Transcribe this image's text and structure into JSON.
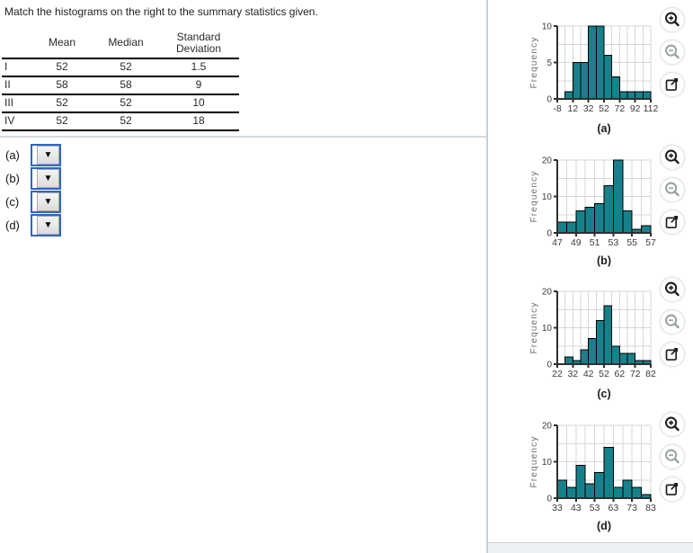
{
  "question": {
    "prompt": "Match the histograms on the right to the summary statistics given.",
    "table": {
      "headers": [
        "",
        "Mean",
        "Median",
        "Standard Deviation"
      ],
      "rows": [
        [
          "I",
          "52",
          "52",
          "1.5"
        ],
        [
          "II",
          "58",
          "58",
          "9"
        ],
        [
          "III",
          "52",
          "52",
          "10"
        ],
        [
          "IV",
          "52",
          "52",
          "18"
        ]
      ]
    },
    "answers": [
      {
        "label": "(a)",
        "value": ""
      },
      {
        "label": "(b)",
        "value": ""
      },
      {
        "label": "(c)",
        "value": ""
      },
      {
        "label": "(d)",
        "value": ""
      }
    ]
  },
  "icons": {
    "zoom_in": "magnifier-plus",
    "zoom_out": "magnifier-minus",
    "open_external": "open-in-new-window",
    "dropdown_arrow": "▼"
  },
  "colors": {
    "bar": "#17818B",
    "bar_border": "#000000",
    "grid": "#d7d7d7",
    "axis": "#2f2f2f",
    "tick_text": "#3a3a3a",
    "ylabel_text": "#707070",
    "divider": "#c7d0d9",
    "dropdown_border": "#2f66c4"
  },
  "chart_data": [
    {
      "type": "bar",
      "title": "(a)",
      "ylabel": "Frequency",
      "xlim": [
        -8,
        112
      ],
      "ylim": [
        0,
        10
      ],
      "x_ticks": [
        -8,
        12,
        32,
        52,
        72,
        92,
        112
      ],
      "x_grid_step": 10,
      "y_ticks": [
        0,
        5,
        10
      ],
      "y_grid_step": 2.5,
      "bin_start": 2,
      "bin_width": 10,
      "frequencies": [
        1,
        5,
        5,
        10,
        10,
        6,
        3,
        1,
        1,
        1,
        1
      ]
    },
    {
      "type": "bar",
      "title": "(b)",
      "ylabel": "Frequency",
      "xlim": [
        47,
        57
      ],
      "ylim": [
        0,
        20
      ],
      "x_ticks": [
        47,
        49,
        51,
        53,
        55,
        57
      ],
      "x_grid_step": 1,
      "y_ticks": [
        0,
        10,
        20
      ],
      "y_grid_step": 5,
      "bin_start": 47,
      "bin_width": 1,
      "frequencies": [
        3,
        3,
        6,
        7,
        8,
        13,
        20,
        6,
        1,
        2
      ]
    },
    {
      "type": "bar",
      "title": "(c)",
      "ylabel": "Frequency",
      "xlim": [
        22,
        82
      ],
      "ylim": [
        0,
        20
      ],
      "x_ticks": [
        22,
        32,
        42,
        52,
        62,
        72,
        82
      ],
      "x_grid_step": 5,
      "y_ticks": [
        0,
        10,
        20
      ],
      "y_grid_step": 5,
      "bin_start": 27,
      "bin_width": 5,
      "frequencies": [
        2,
        1,
        4,
        7,
        12,
        16,
        5,
        3,
        3,
        1,
        1
      ]
    },
    {
      "type": "bar",
      "title": "(d)",
      "ylabel": "Frequency",
      "xlim": [
        33,
        83
      ],
      "ylim": [
        0,
        20
      ],
      "x_ticks": [
        33,
        43,
        53,
        63,
        73,
        83
      ],
      "x_grid_step": 5,
      "y_ticks": [
        0,
        10,
        20
      ],
      "y_grid_step": 5,
      "bin_start": 33,
      "bin_width": 5,
      "frequencies": [
        5,
        3,
        9,
        4,
        7,
        14,
        3,
        5,
        3,
        1
      ]
    }
  ]
}
